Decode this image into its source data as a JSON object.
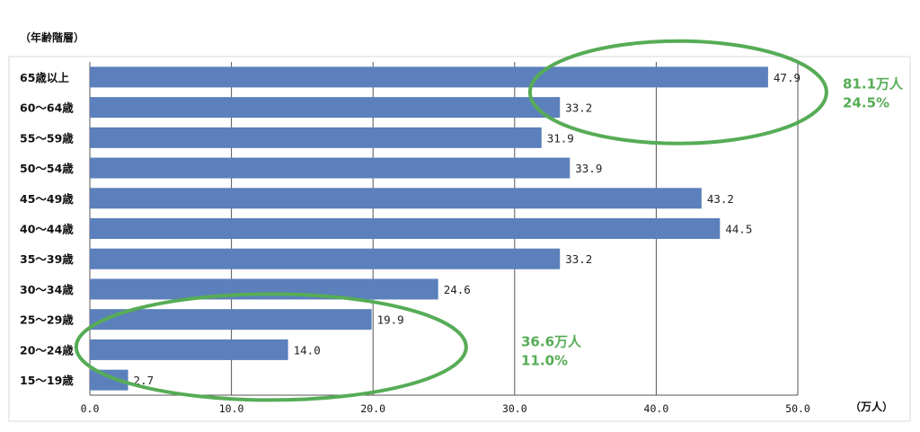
{
  "chart_data": {
    "type": "bar",
    "orientation": "horizontal",
    "ylabel": "（年齢階層）",
    "xlabel": "（万人）",
    "categories": [
      "65歳以上",
      "60～64歳",
      "55～59歳",
      "50～54歳",
      "45～49歳",
      "40～44歳",
      "35～39歳",
      "30～34歳",
      "25～29歳",
      "20～24歳",
      "15～19歳"
    ],
    "values": [
      47.9,
      33.2,
      31.9,
      33.9,
      43.2,
      44.5,
      33.2,
      24.6,
      19.9,
      14.0,
      2.7
    ],
    "value_labels": [
      "47.9",
      "33.2",
      "31.9",
      "33.9",
      "43.2",
      "44.5",
      "33.2",
      "24.6",
      "19.9",
      "14.0",
      "2.7"
    ],
    "xlim": [
      0,
      50
    ],
    "xticks": [
      0,
      10,
      20,
      30,
      40,
      50
    ],
    "xtick_labels": [
      "0.0",
      "10.0",
      "20.0",
      "30.0",
      "40.0",
      "50.0"
    ],
    "grid": true,
    "bar_color": "#5b80bb",
    "annotations": [
      {
        "line1": "81.1万人",
        "line2": "24.5%",
        "color": "#56ac56",
        "highlights": [
          "65歳以上",
          "60～64歳"
        ]
      },
      {
        "line1": "36.6万人",
        "line2": "11.0%",
        "color": "#56ac56",
        "highlights": [
          "25～29歳",
          "20～24歳",
          "15～19歳"
        ]
      }
    ]
  }
}
